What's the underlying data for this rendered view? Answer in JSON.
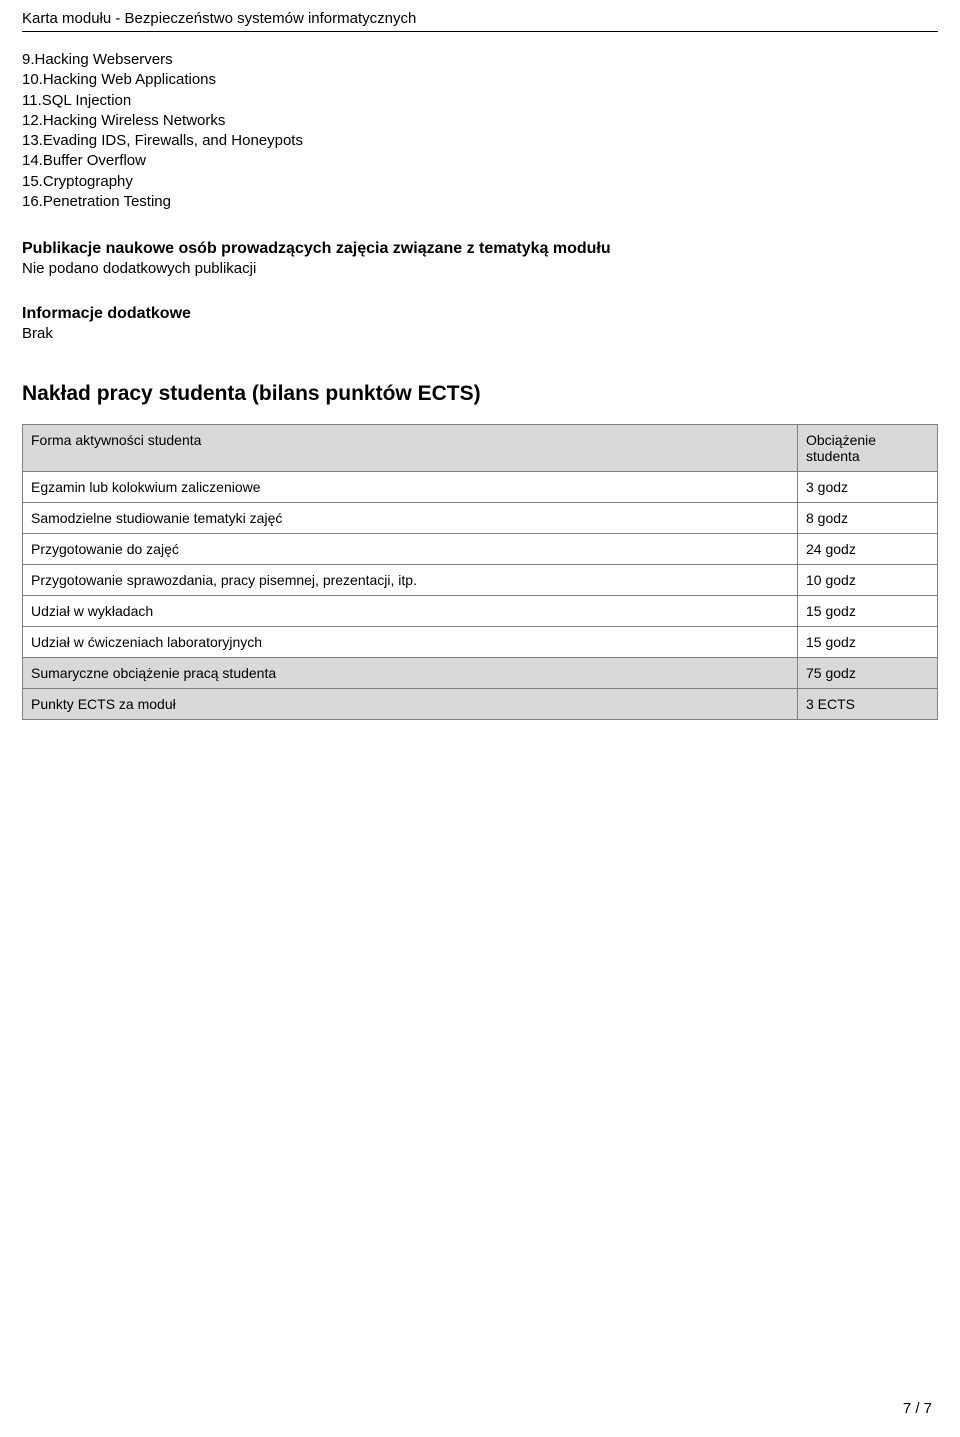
{
  "header": {
    "title": "Karta modułu - Bezpieczeństwo systemów informatycznych"
  },
  "topics": [
    "9.Hacking Webservers",
    "10.Hacking Web Applications",
    "11.SQL Injection",
    "12.Hacking Wireless Networks",
    "13.Evading IDS, Firewalls, and Honeypots",
    "14.Buffer Overflow",
    "15.Cryptography",
    "16.Penetration Testing"
  ],
  "publications": {
    "heading": "Publikacje naukowe osób prowadzących zajęcia związane z tematyką modułu",
    "text": "Nie podano dodatkowych publikacji"
  },
  "additional": {
    "heading": "Informacje dodatkowe",
    "text": "Brak"
  },
  "workload": {
    "heading": "Nakład pracy studenta (bilans punktów ECTS)",
    "table": {
      "col_activity": "Forma aktywności studenta",
      "col_load": "Obciążenie studenta",
      "rows": [
        {
          "activity": "Egzamin lub kolokwium zaliczeniowe",
          "load": "3 godz"
        },
        {
          "activity": "Samodzielne studiowanie tematyki zajęć",
          "load": "8 godz"
        },
        {
          "activity": "Przygotowanie do zajęć",
          "load": "24 godz"
        },
        {
          "activity": "Przygotowanie sprawozdania, pracy pisemnej, prezentacji, itp.",
          "load": "10 godz"
        },
        {
          "activity": "Udział w wykładach",
          "load": "15 godz"
        },
        {
          "activity": "Udział w ćwiczeniach laboratoryjnych",
          "load": "15 godz"
        }
      ],
      "summary": [
        {
          "activity": "Sumaryczne obciążenie pracą studenta",
          "load": "75 godz"
        },
        {
          "activity": "Punkty ECTS za moduł",
          "load": "3 ECTS"
        }
      ]
    }
  },
  "footer": {
    "page": "7 / 7"
  },
  "colors": {
    "border": "#808080",
    "header_bg": "#d9d9d9",
    "text": "#000000",
    "background": "#ffffff"
  }
}
